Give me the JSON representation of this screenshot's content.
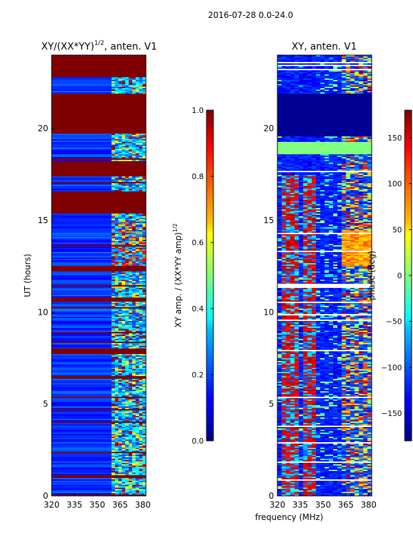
{
  "suptitle": "2016-07-28 0.0-24.0",
  "xlabel": "frequency (MHz)",
  "colors": {
    "low": "#00007f",
    "mid_low": "#0040ff",
    "mid": "#80ff7a",
    "mid_high": "#ffc000",
    "high": "#7f0000"
  },
  "chart_data": [
    {
      "type": "heatmap",
      "title_main": "XY/(XX*YY)",
      "title_sup": "1/2",
      "title_tail": ", anten. V1",
      "ylabel": "UT (hours)",
      "xlim": [
        320,
        382
      ],
      "ylim": [
        0,
        24
      ],
      "xticks": [
        320,
        335,
        350,
        365,
        380
      ],
      "yticks": [
        0,
        5,
        10,
        15,
        20
      ],
      "colorbar": {
        "label_main": "XY amp. / (XX*YY amp)",
        "label_sup": "1/2",
        "range": [
          0.0,
          1.0
        ],
        "ticks": [
          "0.0",
          "0.2",
          "0.4",
          "0.6",
          "0.8",
          "1.0"
        ],
        "tick_values": [
          0.0,
          0.2,
          0.4,
          0.6,
          0.8,
          1.0
        ]
      },
      "saturated_hours": [
        [
          0.0,
          0.1
        ],
        [
          1.0,
          1.1
        ],
        [
          5.3,
          5.4
        ],
        [
          6.4,
          6.5
        ],
        [
          7.7,
          8.0
        ],
        [
          10.6,
          10.8
        ],
        [
          12.4,
          12.5
        ],
        [
          15.4,
          16.6
        ],
        [
          17.4,
          18.2
        ],
        [
          19.7,
          21.9
        ],
        [
          22.8,
          24.0
        ]
      ]
    },
    {
      "type": "heatmap",
      "title": "XY, anten. V1",
      "ylabel": "",
      "xlim": [
        320,
        382
      ],
      "ylim": [
        0,
        24
      ],
      "xticks": [
        320,
        335,
        350,
        365,
        380
      ],
      "yticks": [
        0,
        5,
        10,
        15,
        20
      ],
      "colorbar": {
        "label": "phase (deg)",
        "range": [
          -180,
          180
        ],
        "ticks": [
          "−150",
          "−100",
          "−50",
          "0",
          "50",
          "100",
          "150"
        ],
        "tick_values": [
          -150,
          -100,
          -50,
          0,
          50,
          100,
          150
        ]
      },
      "flat_bands": [
        [
          19.6,
          21.9
        ],
        [
          18.6,
          19.3
        ]
      ]
    }
  ]
}
